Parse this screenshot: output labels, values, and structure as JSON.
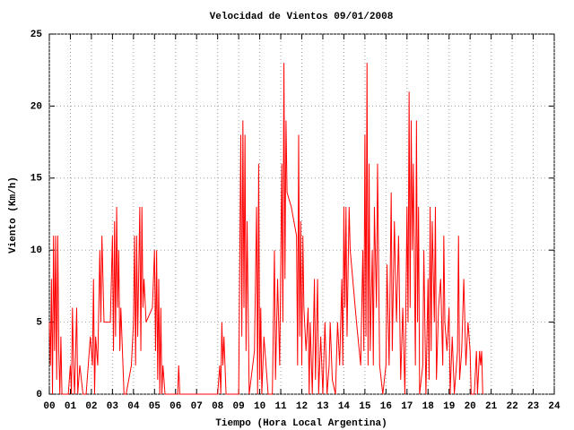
{
  "chart_data": {
    "type": "line",
    "title": "Velocidad de Vientos 09/01/2008",
    "xlabel": "Tiempo (Hora Local Argentina)",
    "ylabel": "Viento (Km/h)",
    "color": "#ff0000",
    "grid": true,
    "xlim": [
      0,
      24
    ],
    "ylim": [
      0,
      25
    ],
    "yticks": [
      0,
      5,
      10,
      15,
      20,
      25
    ],
    "xticks": [
      {
        "value": 0,
        "label": "00"
      },
      {
        "value": 1,
        "label": "01"
      },
      {
        "value": 2,
        "label": "02"
      },
      {
        "value": 3,
        "label": "03"
      },
      {
        "value": 4,
        "label": "04"
      },
      {
        "value": 5,
        "label": "05"
      },
      {
        "value": 6,
        "label": "06"
      },
      {
        "value": 7,
        "label": "07"
      },
      {
        "value": 8,
        "label": "08"
      },
      {
        "value": 9,
        "label": "09"
      },
      {
        "value": 10,
        "label": "10"
      },
      {
        "value": 11,
        "label": "11"
      },
      {
        "value": 12,
        "label": "12"
      },
      {
        "value": 13,
        "label": "13"
      },
      {
        "value": 14,
        "label": "14"
      },
      {
        "value": 15,
        "label": "15"
      },
      {
        "value": 16,
        "label": "16"
      },
      {
        "value": 17,
        "label": "17"
      },
      {
        "value": 18,
        "label": "18"
      },
      {
        "value": 19,
        "label": "19"
      },
      {
        "value": 20,
        "label": "20"
      },
      {
        "value": 21,
        "label": "21"
      },
      {
        "value": 22,
        "label": "22"
      },
      {
        "value": 23,
        "label": "23"
      },
      {
        "value": 24,
        "label": "24"
      }
    ],
    "x": [
      0,
      0.05,
      0.1,
      0.15,
      0.2,
      0.25,
      0.3,
      0.35,
      0.4,
      0.45,
      0.5,
      0.55,
      0.6,
      0.9,
      1.0,
      1.05,
      1.1,
      1.15,
      1.2,
      1.3,
      1.35,
      1.45,
      1.6,
      1.75,
      1.85,
      1.95,
      2.05,
      2.1,
      2.15,
      2.2,
      2.3,
      2.4,
      2.45,
      2.5,
      2.6,
      2.9,
      3.0,
      3.05,
      3.1,
      3.15,
      3.2,
      3.25,
      3.3,
      3.35,
      3.4,
      3.55,
      3.65,
      3.9,
      4.0,
      4.05,
      4.1,
      4.15,
      4.2,
      4.3,
      4.35,
      4.4,
      4.45,
      4.5,
      4.6,
      4.9,
      5.0,
      5.05,
      5.1,
      5.15,
      5.2,
      5.25,
      5.3,
      5.35,
      5.4,
      5.5,
      6.1,
      6.15,
      6.2,
      8.0,
      8.1,
      8.15,
      8.2,
      8.25,
      8.3,
      8.4,
      9.0,
      9.05,
      9.1,
      9.15,
      9.2,
      9.25,
      9.3,
      9.35,
      9.4,
      9.5,
      9.75,
      9.85,
      9.9,
      9.95,
      10.0,
      10.05,
      10.1,
      10.2,
      10.3,
      10.4,
      10.6,
      10.7,
      10.75,
      10.85,
      10.95,
      11.05,
      11.1,
      11.15,
      11.2,
      11.25,
      11.3,
      11.5,
      11.75,
      11.8,
      11.85,
      11.9,
      11.95,
      12.0,
      12.05,
      12.1,
      12.2,
      12.3,
      12.35,
      12.4,
      12.5,
      12.6,
      12.65,
      12.75,
      12.8,
      12.9,
      13.0,
      13.1,
      13.2,
      13.3,
      13.35,
      13.45,
      13.6,
      13.7,
      13.8,
      13.9,
      13.95,
      14.0,
      14.05,
      14.1,
      14.15,
      14.25,
      14.3,
      14.6,
      14.8,
      14.9,
      14.95,
      15.0,
      15.05,
      15.1,
      15.15,
      15.2,
      15.25,
      15.35,
      15.4,
      15.45,
      15.55,
      15.6,
      15.7,
      15.85,
      16.0,
      16.05,
      16.15,
      16.25,
      16.3,
      16.4,
      16.5,
      16.6,
      16.7,
      16.8,
      16.9,
      17.0,
      17.05,
      17.1,
      17.15,
      17.2,
      17.25,
      17.3,
      17.4,
      17.45,
      17.5,
      17.55,
      17.6,
      17.75,
      17.8,
      17.9,
      18.0,
      18.05,
      18.1,
      18.15,
      18.2,
      18.3,
      18.35,
      18.4,
      18.5,
      18.6,
      18.7,
      18.75,
      18.8,
      18.9,
      19.0,
      19.05,
      19.15,
      19.25,
      19.4,
      19.45,
      19.5,
      19.6,
      19.7,
      19.8,
      19.9,
      20.0,
      20.05,
      20.2,
      20.3,
      20.35,
      20.45,
      20.5,
      20.55,
      20.6
    ],
    "values": [
      5,
      2,
      8,
      0,
      11,
      3,
      11,
      1,
      11,
      3,
      0,
      4,
      0,
      0,
      2,
      0,
      6,
      2,
      0,
      6,
      0,
      2,
      0,
      0,
      2,
      4,
      2,
      8,
      0,
      4,
      2,
      10,
      5,
      11,
      5,
      5,
      11,
      3,
      12,
      4,
      13,
      6,
      10,
      3,
      6,
      0,
      0,
      2,
      5,
      11,
      2,
      11,
      4,
      13,
      3,
      13,
      6,
      8,
      5,
      6,
      10,
      3,
      10,
      1,
      8,
      0,
      6,
      0,
      2,
      0,
      0,
      2,
      0,
      0,
      2,
      0,
      5,
      2,
      4,
      0,
      0,
      9,
      18,
      4,
      19,
      6,
      18,
      3,
      12,
      0,
      3,
      13,
      0,
      16,
      1,
      6,
      0,
      4,
      2,
      0,
      0,
      10,
      1,
      8,
      2,
      16,
      5,
      23,
      8,
      19,
      14,
      13,
      11,
      2,
      18,
      4,
      12,
      2,
      11,
      6,
      3,
      6,
      0,
      5,
      0,
      8,
      1,
      8,
      0,
      4,
      0,
      5,
      0,
      2,
      5,
      1,
      0,
      5,
      2,
      8,
      2,
      13,
      6,
      13,
      4,
      13,
      10,
      5,
      2,
      10,
      3,
      18,
      4,
      23,
      2,
      16,
      3,
      10,
      2,
      13,
      6,
      16,
      2,
      0,
      2,
      9,
      2,
      14,
      3,
      12,
      5,
      11,
      1,
      6,
      0,
      13,
      5,
      21,
      6,
      19,
      10,
      16,
      2,
      19,
      5,
      13,
      0,
      2,
      10,
      0,
      8,
      1,
      13,
      3,
      12,
      5,
      13,
      1,
      6,
      8,
      2,
      11,
      5,
      3,
      6,
      0,
      4,
      0,
      3,
      11,
      1,
      3,
      8,
      2,
      5,
      3,
      0,
      0,
      3,
      0,
      3,
      2,
      3,
      0
    ]
  }
}
